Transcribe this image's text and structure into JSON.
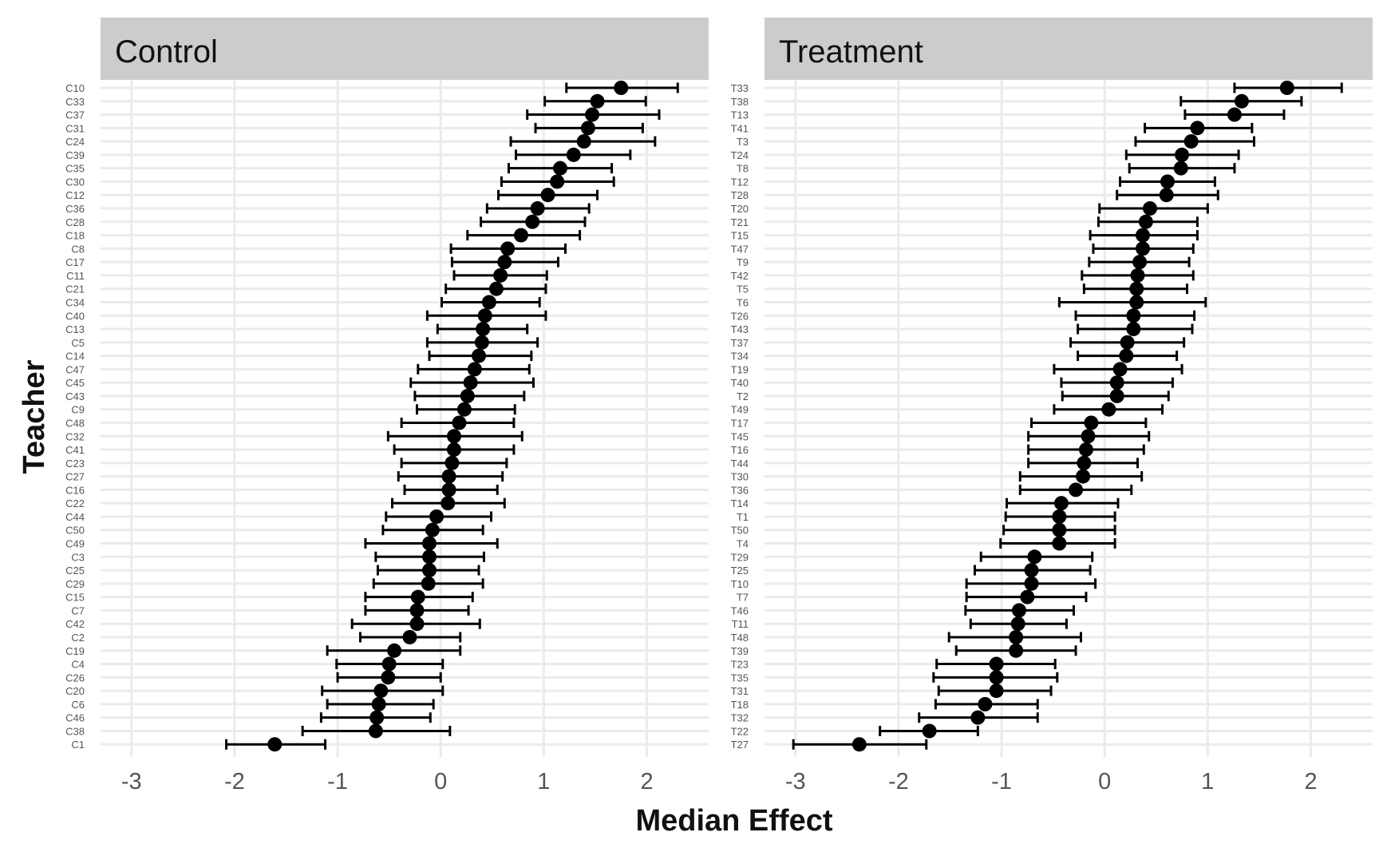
{
  "chart_data": {
    "type": "scatter",
    "xlabel": "Median Effect",
    "ylabel": "Teacher",
    "xlim": [
      -3.3,
      2.6
    ],
    "x_ticks": [
      -3,
      -2,
      -1,
      0,
      1,
      2
    ],
    "grid": true,
    "legend": "none",
    "facets": [
      {
        "title": "Control",
        "teachers": [
          "C10",
          "C33",
          "C37",
          "C31",
          "C24",
          "C39",
          "C35",
          "C30",
          "C12",
          "C36",
          "C28",
          "C18",
          "C8",
          "C17",
          "C11",
          "C21",
          "C34",
          "C40",
          "C13",
          "C5",
          "C14",
          "C47",
          "C45",
          "C43",
          "C9",
          "C48",
          "C32",
          "C41",
          "C23",
          "C27",
          "C16",
          "C22",
          "C44",
          "C50",
          "C49",
          "C3",
          "C25",
          "C29",
          "C15",
          "C7",
          "C42",
          "C2",
          "C19",
          "C4",
          "C26",
          "C20",
          "C6",
          "C46",
          "C38",
          "C1"
        ],
        "median": [
          1.75,
          1.52,
          1.47,
          1.43,
          1.39,
          1.29,
          1.16,
          1.13,
          1.04,
          0.94,
          0.89,
          0.78,
          0.65,
          0.62,
          0.58,
          0.54,
          0.47,
          0.43,
          0.41,
          0.4,
          0.37,
          0.33,
          0.29,
          0.26,
          0.23,
          0.18,
          0.13,
          0.13,
          0.11,
          0.08,
          0.08,
          0.07,
          -0.04,
          -0.08,
          -0.11,
          -0.11,
          -0.11,
          -0.12,
          -0.22,
          -0.23,
          -0.23,
          -0.3,
          -0.45,
          -0.5,
          -0.51,
          -0.58,
          -0.6,
          -0.62,
          -0.63,
          -1.61
        ],
        "lower": [
          1.22,
          1.01,
          0.84,
          0.92,
          0.68,
          0.73,
          0.66,
          0.59,
          0.56,
          0.45,
          0.39,
          0.26,
          0.1,
          0.11,
          0.13,
          0.05,
          0.01,
          -0.13,
          -0.03,
          -0.13,
          -0.11,
          -0.22,
          -0.29,
          -0.25,
          -0.23,
          -0.38,
          -0.51,
          -0.45,
          -0.38,
          -0.41,
          -0.35,
          -0.47,
          -0.53,
          -0.56,
          -0.73,
          -0.63,
          -0.61,
          -0.65,
          -0.73,
          -0.73,
          -0.86,
          -0.78,
          -1.1,
          -1.01,
          -1.0,
          -1.15,
          -1.1,
          -1.16,
          -1.34,
          -2.08
        ],
        "upper": [
          2.3,
          1.99,
          2.12,
          1.96,
          2.08,
          1.84,
          1.66,
          1.68,
          1.52,
          1.44,
          1.4,
          1.35,
          1.21,
          1.14,
          1.03,
          1.02,
          0.96,
          1.02,
          0.84,
          0.94,
          0.88,
          0.86,
          0.9,
          0.81,
          0.72,
          0.71,
          0.79,
          0.71,
          0.64,
          0.6,
          0.55,
          0.62,
          0.49,
          0.41,
          0.55,
          0.42,
          0.37,
          0.41,
          0.31,
          0.27,
          0.38,
          0.19,
          0.19,
          0.02,
          0.0,
          0.02,
          -0.07,
          -0.1,
          0.09,
          -1.12
        ]
      },
      {
        "title": "Treatment",
        "teachers": [
          "T33",
          "T38",
          "T13",
          "T41",
          "T3",
          "T24",
          "T8",
          "T12",
          "T28",
          "T20",
          "T21",
          "T15",
          "T47",
          "T9",
          "T42",
          "T5",
          "T6",
          "T26",
          "T43",
          "T37",
          "T34",
          "T19",
          "T40",
          "T2",
          "T49",
          "T17",
          "T45",
          "T16",
          "T44",
          "T30",
          "T36",
          "T14",
          "T1",
          "T50",
          "T4",
          "T29",
          "T25",
          "T10",
          "T7",
          "T46",
          "T11",
          "T48",
          "T39",
          "T23",
          "T35",
          "T31",
          "T18",
          "T32",
          "T22",
          "T27"
        ],
        "median": [
          1.77,
          1.33,
          1.26,
          0.9,
          0.84,
          0.75,
          0.74,
          0.61,
          0.6,
          0.44,
          0.4,
          0.37,
          0.37,
          0.34,
          0.32,
          0.31,
          0.31,
          0.28,
          0.28,
          0.22,
          0.21,
          0.15,
          0.12,
          0.12,
          0.04,
          -0.13,
          -0.16,
          -0.18,
          -0.2,
          -0.21,
          -0.28,
          -0.42,
          -0.44,
          -0.44,
          -0.44,
          -0.68,
          -0.71,
          -0.71,
          -0.75,
          -0.83,
          -0.84,
          -0.86,
          -0.86,
          -1.05,
          -1.05,
          -1.05,
          -1.16,
          -1.23,
          -1.7,
          -2.38
        ],
        "lower": [
          1.26,
          0.74,
          0.78,
          0.39,
          0.3,
          0.21,
          0.24,
          0.15,
          0.12,
          -0.05,
          -0.06,
          -0.14,
          -0.11,
          -0.15,
          -0.22,
          -0.2,
          -0.44,
          -0.28,
          -0.26,
          -0.33,
          -0.26,
          -0.49,
          -0.42,
          -0.41,
          -0.49,
          -0.71,
          -0.74,
          -0.74,
          -0.74,
          -0.82,
          -0.82,
          -0.95,
          -0.96,
          -0.98,
          -1.01,
          -1.2,
          -1.26,
          -1.34,
          -1.34,
          -1.35,
          -1.3,
          -1.51,
          -1.44,
          -1.63,
          -1.66,
          -1.61,
          -1.64,
          -1.8,
          -2.18,
          -3.02
        ],
        "upper": [
          2.3,
          1.91,
          1.74,
          1.43,
          1.45,
          1.3,
          1.26,
          1.07,
          1.1,
          1.0,
          0.9,
          0.9,
          0.86,
          0.82,
          0.86,
          0.8,
          0.98,
          0.87,
          0.85,
          0.77,
          0.7,
          0.75,
          0.66,
          0.62,
          0.56,
          0.4,
          0.43,
          0.38,
          0.32,
          0.36,
          0.26,
          0.13,
          0.1,
          0.1,
          0.1,
          -0.12,
          -0.14,
          -0.09,
          -0.18,
          -0.3,
          -0.37,
          -0.23,
          -0.28,
          -0.48,
          -0.46,
          -0.52,
          -0.65,
          -0.65,
          -1.23,
          -1.73
        ]
      }
    ]
  }
}
